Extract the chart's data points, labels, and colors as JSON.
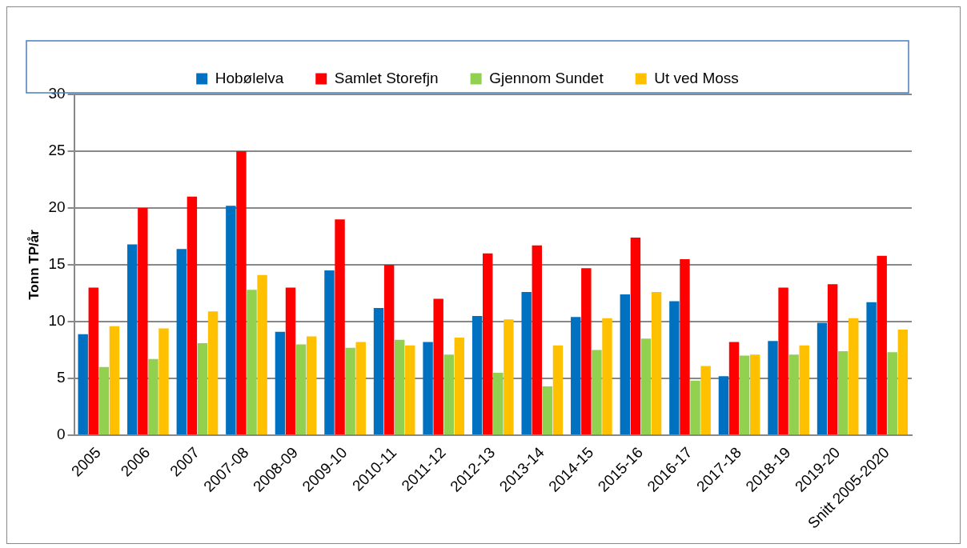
{
  "chart_data": {
    "type": "bar",
    "ylabel": "Tonn TP/år",
    "categories": [
      "2005",
      "2006",
      "2007",
      "2007-08",
      "2008-09",
      "2009-10",
      "2010-11",
      "2011-12",
      "2012-13",
      "2013-14",
      "2014-15",
      "2015-16",
      "2016-17",
      "2017-18",
      "2018-19",
      "2019-20",
      "Snitt 2005-2020"
    ],
    "series": [
      {
        "name": "Hobølelva",
        "color": "#0070c0",
        "values": [
          8.9,
          16.8,
          16.4,
          20.2,
          9.1,
          14.5,
          11.2,
          8.2,
          10.5,
          12.6,
          10.4,
          12.4,
          11.8,
          5.2,
          8.3,
          9.9,
          11.7
        ]
      },
      {
        "name": "Samlet Storefjn",
        "color": "#ff0000",
        "values": [
          13,
          20,
          21,
          25,
          13,
          19,
          15,
          12,
          16,
          16.7,
          14.7,
          17.4,
          15.5,
          8.2,
          13,
          13.3,
          15.8
        ]
      },
      {
        "name": "Gjennom Sundet",
        "color": "#92d050",
        "values": [
          6,
          6.7,
          8.1,
          12.8,
          8,
          7.7,
          8.4,
          7.1,
          5.5,
          4.3,
          7.5,
          8.5,
          4.8,
          7,
          7.1,
          7.4,
          7.3
        ]
      },
      {
        "name": "Ut ved Moss",
        "color": "#ffc000",
        "values": [
          9.6,
          9.4,
          10.9,
          14.1,
          8.7,
          8.2,
          7.9,
          8.6,
          10.2,
          7.9,
          10.3,
          12.6,
          6.1,
          7.1,
          7.9,
          10.3,
          9.3
        ]
      }
    ],
    "ylim": [
      0,
      30
    ],
    "yticks": [
      0,
      5,
      10,
      15,
      20,
      25,
      30
    ],
    "grid": "y",
    "legend": "top"
  }
}
